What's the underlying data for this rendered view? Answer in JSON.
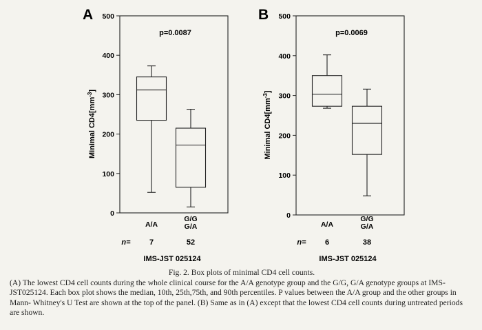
{
  "figure": {
    "caption_title": "Fig. 2.  Box plots of minimal CD4 cell counts.",
    "caption_body": "(A) The lowest CD4 cell counts during the whole clinical course for the A/A genotype group and the G/G, G/A genotype groups at IMS-JST025124. Each box plot shows the median, 10th, 25th,75th, and 90th percentiles. P values between the A/A group and the other groups in Mann- Whitney's U Test are shown at the top of the panel. (B) Same as in (A) except that the lowest CD4 cell counts during untreated periods are shown."
  },
  "chart_data": [
    {
      "type": "box",
      "panel": "A",
      "ylabel": "Minimal CD4[mm-3]",
      "ylim": [
        0,
        500
      ],
      "yticks": [
        0,
        100,
        200,
        300,
        400,
        500
      ],
      "annotation": "p=0.0087",
      "n_prefix": "n=",
      "subtitle": "IMS-JST 025124",
      "grid": false,
      "groups": [
        {
          "label": [
            "A/A"
          ],
          "n": "7",
          "p10": 52,
          "p25": 235,
          "median": 312,
          "p75": 345,
          "p90": 373
        },
        {
          "label": [
            "G/G",
            "G/A"
          ],
          "n": "52",
          "p10": 15,
          "p25": 65,
          "median": 172,
          "p75": 215,
          "p90": 263
        }
      ]
    },
    {
      "type": "box",
      "panel": "B",
      "ylabel": "Minimal CD4[mm-3]",
      "ylim": [
        0,
        500
      ],
      "yticks": [
        0,
        100,
        200,
        300,
        400,
        500
      ],
      "annotation": "p=0.0069",
      "n_prefix": "n=",
      "subtitle": "IMS-JST 025124",
      "grid": false,
      "groups": [
        {
          "label": [
            "A/A"
          ],
          "n": "6",
          "p10": 268,
          "p25": 273,
          "median": 303,
          "p75": 350,
          "p90": 402
        },
        {
          "label": [
            "G/G",
            "G/A"
          ],
          "n": "38",
          "p10": 48,
          "p25": 152,
          "median": 230,
          "p75": 273,
          "p90": 316
        }
      ]
    }
  ]
}
